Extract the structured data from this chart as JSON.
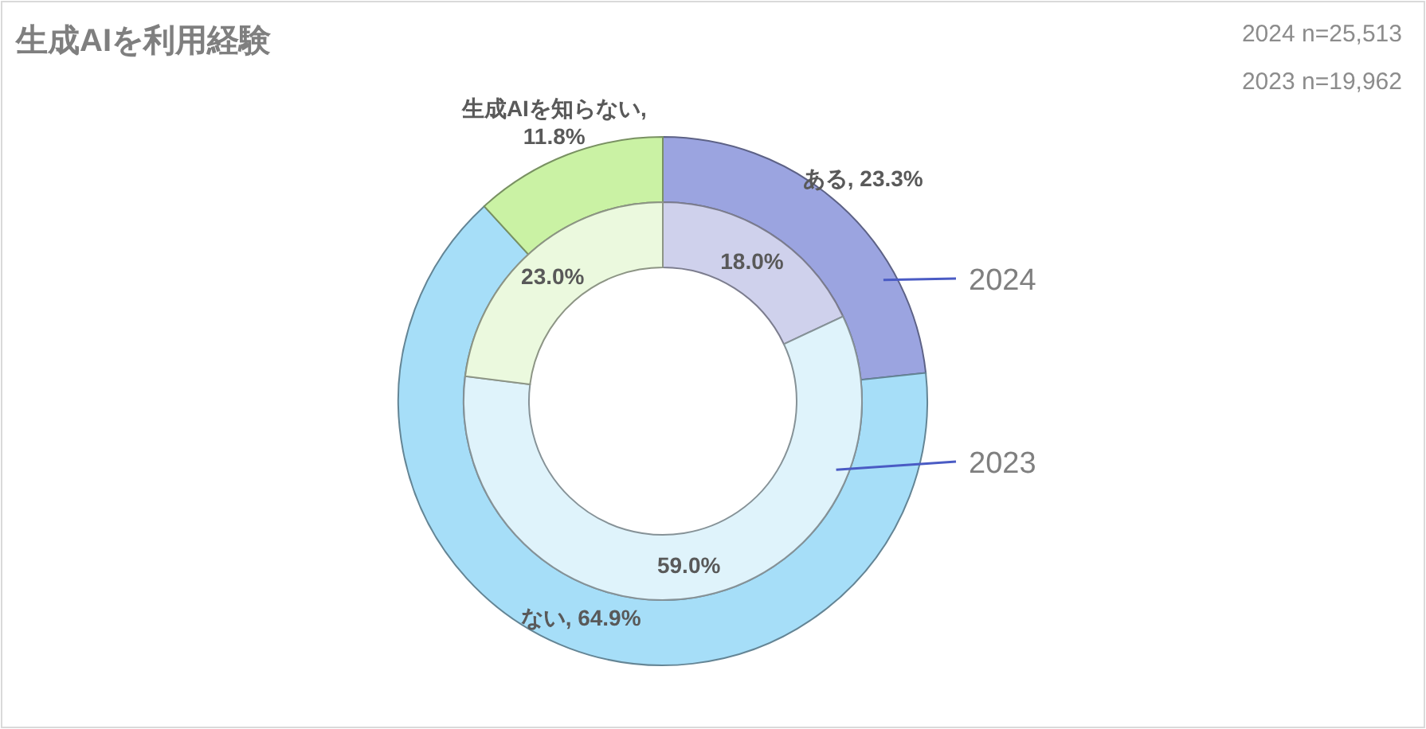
{
  "chart_data": {
    "type": "donut",
    "title": "生成AIを利用経験",
    "annotations": [
      "2024 n=25,513",
      "2023 n=19,962"
    ],
    "categories": [
      "ある",
      "ない",
      "生成AIを知らない"
    ],
    "series": [
      {
        "name": "2024",
        "values": [
          23.3,
          64.9,
          11.8
        ],
        "colors": [
          "#9ba4e0",
          "#a6def8",
          "#caf2a4"
        ],
        "value_labels": [
          ", 23.3%",
          ", 64.9%",
          ",\n11.8%"
        ]
      },
      {
        "name": "2023",
        "values": [
          18.0,
          59.0,
          23.0
        ],
        "colors": [
          "#cfd1ec",
          "#dff3fb",
          "#ebf9de"
        ],
        "value_labels": [
          "18.0%",
          "59.0%",
          "23.0%"
        ]
      }
    ]
  }
}
